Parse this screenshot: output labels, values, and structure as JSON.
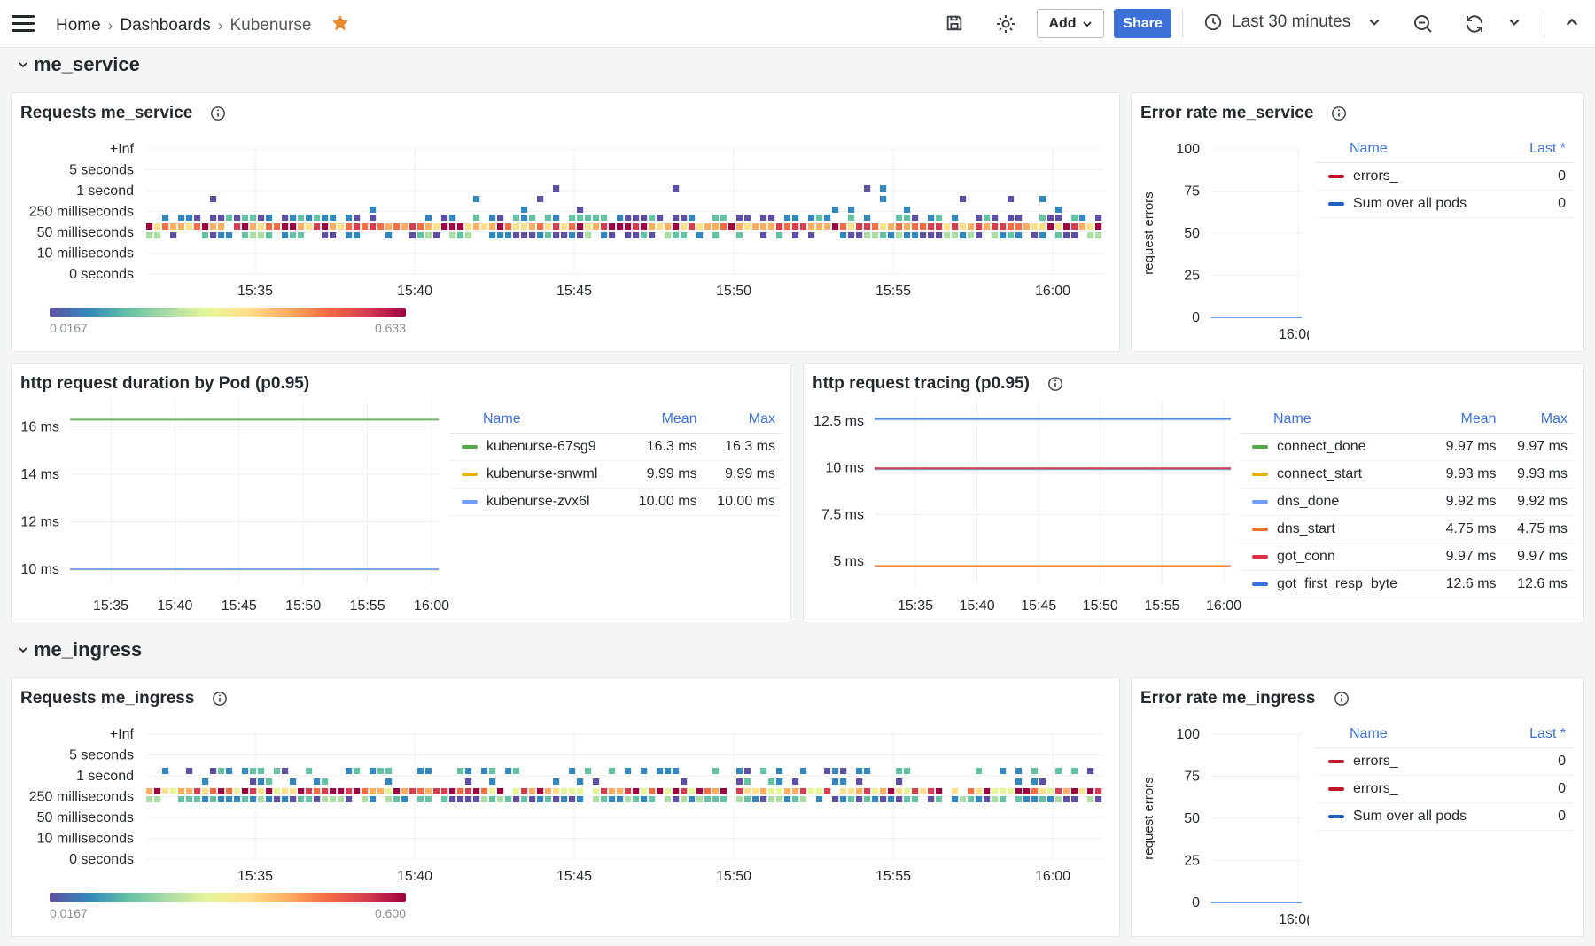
{
  "breadcrumb": {
    "home": "Home",
    "dashboards": "Dashboards",
    "current": "Kubenurse"
  },
  "toolbar": {
    "add_label": "Add",
    "share_label": "Share",
    "time_range": "Last 30 minutes"
  },
  "colors": {
    "accent": "#3d71d9",
    "star": "#e9872b"
  },
  "rows": [
    {
      "title": "me_service"
    },
    {
      "title": "me_ingress"
    }
  ],
  "heatmap_service": {
    "title": "Requests me_service",
    "y_labels": [
      "+Inf",
      "5 seconds",
      "1 second",
      "250 milliseconds",
      "50 milliseconds",
      "10 milliseconds",
      "0 seconds"
    ],
    "x_labels": [
      "15:35",
      "15:40",
      "15:45",
      "15:50",
      "15:55",
      "16:00"
    ],
    "scale_min": "0.0167",
    "scale_max": "0.633"
  },
  "heatmap_ingress": {
    "title": "Requests me_ingress",
    "y_labels": [
      "+Inf",
      "5 seconds",
      "1 second",
      "250 milliseconds",
      "50 milliseconds",
      "10 milliseconds",
      "0 seconds"
    ],
    "x_labels": [
      "15:35",
      "15:40",
      "15:45",
      "15:50",
      "15:55",
      "16:00"
    ],
    "scale_min": "0.0167",
    "scale_max": "0.600"
  },
  "error_service": {
    "title": "Error rate me_service",
    "ylabel": "request errors",
    "y_ticks": [
      "100",
      "75",
      "50",
      "25",
      "0"
    ],
    "x_tick": "16:0(",
    "legend_headers": {
      "name": "Name",
      "last": "Last *"
    },
    "legend": [
      {
        "name": "errors_",
        "last": "0",
        "color": "#c4162a"
      },
      {
        "name": "Sum over all pods",
        "last": "0",
        "color": "#1f60c4"
      }
    ]
  },
  "error_ingress": {
    "title": "Error rate me_ingress",
    "ylabel": "request errors",
    "y_ticks": [
      "100",
      "75",
      "50",
      "25",
      "0"
    ],
    "x_tick": "16:0(",
    "legend_headers": {
      "name": "Name",
      "last": "Last *"
    },
    "legend": [
      {
        "name": "errors_",
        "last": "0",
        "color": "#c4162a"
      },
      {
        "name": "errors_",
        "last": "0",
        "color": "#c4162a"
      },
      {
        "name": "Sum over all pods",
        "last": "0",
        "color": "#1f60c4"
      }
    ]
  },
  "duration_panel": {
    "title": "http request duration by Pod (p0.95)",
    "legend_headers": {
      "name": "Name",
      "mean": "Mean",
      "max": "Max"
    },
    "legend": [
      {
        "name": "kubenurse-67sg9",
        "mean": "16.3 ms",
        "max": "16.3 ms",
        "color": "#56a64b"
      },
      {
        "name": "kubenurse-snwml",
        "mean": "9.99 ms",
        "max": "9.99 ms",
        "color": "#e0b400"
      },
      {
        "name": "kubenurse-zvx6l",
        "mean": "10.00 ms",
        "max": "10.00 ms",
        "color": "#6d9eff"
      }
    ]
  },
  "tracing_panel": {
    "title": "http request tracing (p0.95)",
    "legend_headers": {
      "name": "Name",
      "mean": "Mean",
      "max": "Max"
    },
    "legend": [
      {
        "name": "connect_done",
        "mean": "9.97 ms",
        "max": "9.97 ms",
        "color": "#56a64b"
      },
      {
        "name": "connect_start",
        "mean": "9.93 ms",
        "max": "9.93 ms",
        "color": "#e0b400"
      },
      {
        "name": "dns_done",
        "mean": "9.92 ms",
        "max": "9.92 ms",
        "color": "#6d9eff"
      },
      {
        "name": "dns_start",
        "mean": "4.75 ms",
        "max": "4.75 ms",
        "color": "#f2742b"
      },
      {
        "name": "got_conn",
        "mean": "9.97 ms",
        "max": "9.97 ms",
        "color": "#e02f44"
      },
      {
        "name": "got_first_resp_byte",
        "mean": "12.6 ms",
        "max": "12.6 ms",
        "color": "#3274d9"
      }
    ]
  },
  "chart_data": [
    {
      "type": "line",
      "title": "http request duration by Pod (p0.95)",
      "x": [
        "15:35",
        "15:40",
        "15:45",
        "15:50",
        "15:55",
        "16:00"
      ],
      "y_ticks": [
        "10 ms",
        "12 ms",
        "14 ms",
        "16 ms"
      ],
      "ylim": [
        9.7,
        16.8
      ],
      "series": [
        {
          "name": "kubenurse-67sg9",
          "value": 16.3,
          "color": "#56a64b"
        },
        {
          "name": "kubenurse-snwml",
          "value": 9.99,
          "color": "#e0b400"
        },
        {
          "name": "kubenurse-zvx6l",
          "value": 10.0,
          "color": "#6d9eff"
        }
      ]
    },
    {
      "type": "line",
      "title": "http request tracing (p0.95)",
      "x": [
        "15:35",
        "15:40",
        "15:45",
        "15:50",
        "15:55",
        "16:00"
      ],
      "y_ticks": [
        "5 ms",
        "7.5 ms",
        "10 ms",
        "12.5 ms"
      ],
      "ylim": [
        4.2,
        13.2
      ],
      "series": [
        {
          "name": "connect_done",
          "value": 9.97,
          "color": "#56a64b"
        },
        {
          "name": "connect_start",
          "value": 9.93,
          "color": "#e0b400"
        },
        {
          "name": "dns_done",
          "value": 9.92,
          "color": "#6d9eff"
        },
        {
          "name": "dns_start",
          "value": 4.75,
          "color": "#f2742b"
        },
        {
          "name": "got_conn",
          "value": 9.97,
          "color": "#e02f44"
        },
        {
          "name": "got_first_resp_byte",
          "value": 12.6,
          "color": "#3274d9"
        }
      ]
    }
  ]
}
